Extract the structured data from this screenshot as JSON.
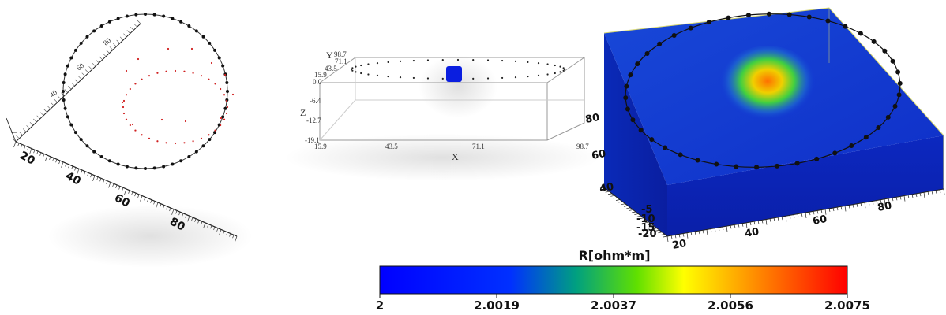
{
  "panel_left": {
    "axis_ticks_main": [
      "20",
      "40",
      "60",
      "80"
    ],
    "axis_ticks_side": [
      "40",
      "60",
      "80"
    ],
    "electrode_count": 56,
    "internal_point_count": 60
  },
  "panel_middle": {
    "y_axis_letter": "Y",
    "z_axis_letter": "Z",
    "x_axis_letter": "X",
    "y_ticks": [
      "98.7",
      "71.1",
      "43.5",
      "15.9"
    ],
    "z_ticks": [
      "0.0",
      "-6.4",
      "-12.7",
      "-19.1"
    ],
    "x_ticks": [
      "15.9",
      "43.5",
      "71.1",
      "98.7"
    ],
    "colors": {
      "box": "#999999",
      "anomaly": "#0a1ee0"
    }
  },
  "panel_right": {
    "front_ticks": [
      "20",
      "40",
      "60",
      "80"
    ],
    "left_ticks": [
      "40",
      "60",
      "80"
    ],
    "depth_ticks": [
      "-5",
      "-10",
      "-15",
      "-20"
    ],
    "colors": {
      "volume": "#1030d8",
      "anomaly_core": "#ff7a00",
      "anomaly_mid": "#e8f000",
      "anomaly_outer": "#20d020"
    }
  },
  "colorbar": {
    "title": "R[ohm*m]",
    "ticks": [
      "2",
      "2.0019",
      "2.0037",
      "2.0056",
      "2.0075"
    ],
    "min": 2,
    "max": 2.0075,
    "colors": [
      "#0000ff",
      "#0040ff",
      "#00c040",
      "#ffff00",
      "#ff0000"
    ]
  }
}
